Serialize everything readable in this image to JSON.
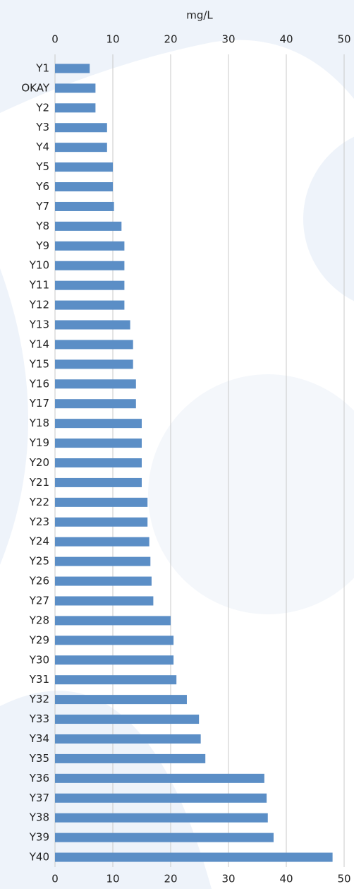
{
  "chart_data": {
    "type": "bar",
    "orientation": "horizontal",
    "x_label": "mg/L",
    "categories": [
      "Y1",
      "OKAY",
      "Y2",
      "Y3",
      "Y4",
      "Y5",
      "Y6",
      "Y7",
      "Y8",
      "Y9",
      "Y10",
      "Y11",
      "Y12",
      "Y13",
      "Y14",
      "Y15",
      "Y16",
      "Y17",
      "Y18",
      "Y19",
      "Y20",
      "Y21",
      "Y22",
      "Y23",
      "Y24",
      "Y25",
      "Y26",
      "Y27",
      "Y28",
      "Y29",
      "Y30",
      "Y31",
      "Y32",
      "Y33",
      "Y34",
      "Y35",
      "Y36",
      "Y37",
      "Y38",
      "Y39",
      "Y40"
    ],
    "values": [
      6,
      7,
      7,
      9,
      9,
      10,
      10,
      10.2,
      11.5,
      12,
      12,
      12,
      12,
      13,
      13.5,
      13.5,
      14,
      14,
      15,
      15,
      15,
      15,
      16,
      16,
      16.3,
      16.5,
      16.7,
      17,
      20,
      20.5,
      20.5,
      21,
      22.8,
      24.9,
      25.2,
      26,
      36.2,
      36.6,
      36.8,
      37.8,
      48
    ],
    "color": "#5b8ec6",
    "xlim": [
      0,
      50
    ],
    "xticks": [
      0,
      10,
      20,
      30,
      40,
      50
    ],
    "grid": true
  }
}
